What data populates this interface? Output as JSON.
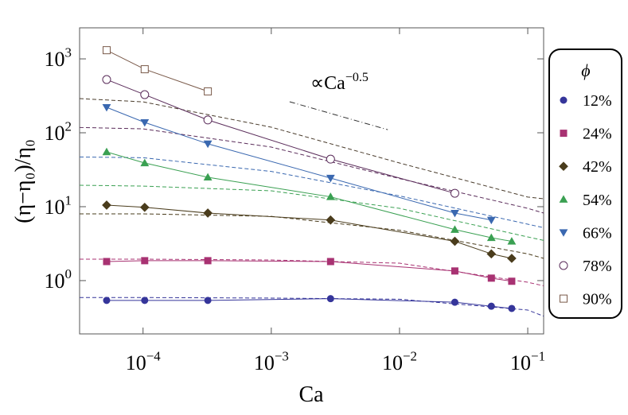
{
  "chart_data": {
    "type": "scatter",
    "xlabel": "Ca",
    "ylabel": "(η−η₀)/η₀",
    "xscale": "log",
    "yscale": "log",
    "xlim": [
      3.2e-05,
      0.133
    ],
    "ylim": [
      0.19,
      2630
    ],
    "xticks": [
      {
        "value": 0.0001,
        "label": "10",
        "exponent": "−4"
      },
      {
        "value": 0.001,
        "label": "10",
        "exponent": "−3"
      },
      {
        "value": 0.01,
        "label": "10",
        "exponent": "−2"
      },
      {
        "value": 0.1,
        "label": "10",
        "exponent": "−1"
      }
    ],
    "yticks": [
      {
        "value": 1,
        "label": "10",
        "exponent": "0"
      },
      {
        "value": 10,
        "label": "10",
        "exponent": "1"
      },
      {
        "value": 100,
        "label": "10",
        "exponent": "2"
      },
      {
        "value": 1000,
        "label": "10",
        "exponent": "3"
      }
    ],
    "legend_title": "ϕ",
    "legend_position": "right",
    "annotation": {
      "text": "∝Ca",
      "exponent": "−0.5",
      "x": [
        0.00139,
        0.0081
      ],
      "y": [
        263,
        110
      ]
    },
    "x": [
      5.2e-05,
      0.000103,
      0.00032,
      0.0029,
      0.027,
      0.052,
      0.075
    ],
    "series": [
      {
        "name": "12%",
        "color": "#35359a",
        "marker": "circle",
        "values": [
          0.54,
          0.54,
          0.54,
          0.57,
          0.51,
          0.45,
          0.42
        ]
      },
      {
        "name": "24%",
        "color": "#a83272",
        "marker": "square",
        "values": [
          1.81,
          1.86,
          1.86,
          1.81,
          1.35,
          1.08,
          0.98
        ]
      },
      {
        "name": "42%",
        "color": "#4a3c1c",
        "marker": "diamond",
        "values": [
          10.5,
          9.8,
          8.2,
          6.6,
          3.4,
          2.3,
          2.0
        ]
      },
      {
        "name": "54%",
        "color": "#3aa052",
        "marker": "triangle-up",
        "values": [
          55,
          39,
          25,
          13.6,
          4.9,
          3.8,
          3.4
        ]
      },
      {
        "name": "66%",
        "color": "#3a68b0",
        "marker": "triangle-down",
        "values": [
          221,
          138,
          71,
          24.4,
          8.2,
          6.6,
          null
        ]
      },
      {
        "name": "78%",
        "color": "#5a2c5a",
        "marker": "open-circle",
        "values": [
          525,
          328,
          149,
          44,
          15.2,
          null,
          null
        ]
      },
      {
        "name": "90%",
        "color": "#7a5a4a",
        "marker": "open-square",
        "values": [
          1310,
          724,
          363,
          null,
          null,
          null,
          null
        ]
      }
    ],
    "fit_x": [
      3.2e-05,
      0.0001,
      0.001,
      0.01,
      0.1,
      0.133
    ],
    "fits": [
      {
        "color": "#35359a",
        "values": [
          0.59,
          0.59,
          0.58,
          0.56,
          0.4,
          0.33
        ]
      },
      {
        "color": "#a83272",
        "values": [
          1.95,
          1.95,
          1.9,
          1.72,
          0.95,
          0.85
        ]
      },
      {
        "color": "#4a3c1c",
        "values": [
          8.0,
          8.0,
          7.4,
          4.8,
          2.3,
          2.0
        ]
      },
      {
        "color": "#3aa052",
        "values": [
          19.5,
          19,
          16.4,
          9.5,
          3.9,
          3.5
        ]
      },
      {
        "color": "#3a68b0",
        "values": [
          47,
          46,
          30,
          14,
          5.8,
          5.2
        ]
      },
      {
        "color": "#5a2c5a",
        "values": [
          118,
          113,
          64,
          24,
          9.5,
          8.2
        ]
      },
      {
        "color": "#4a3c2c",
        "values": [
          290,
          262,
          119,
          39,
          13.5,
          12.8
        ]
      }
    ]
  }
}
